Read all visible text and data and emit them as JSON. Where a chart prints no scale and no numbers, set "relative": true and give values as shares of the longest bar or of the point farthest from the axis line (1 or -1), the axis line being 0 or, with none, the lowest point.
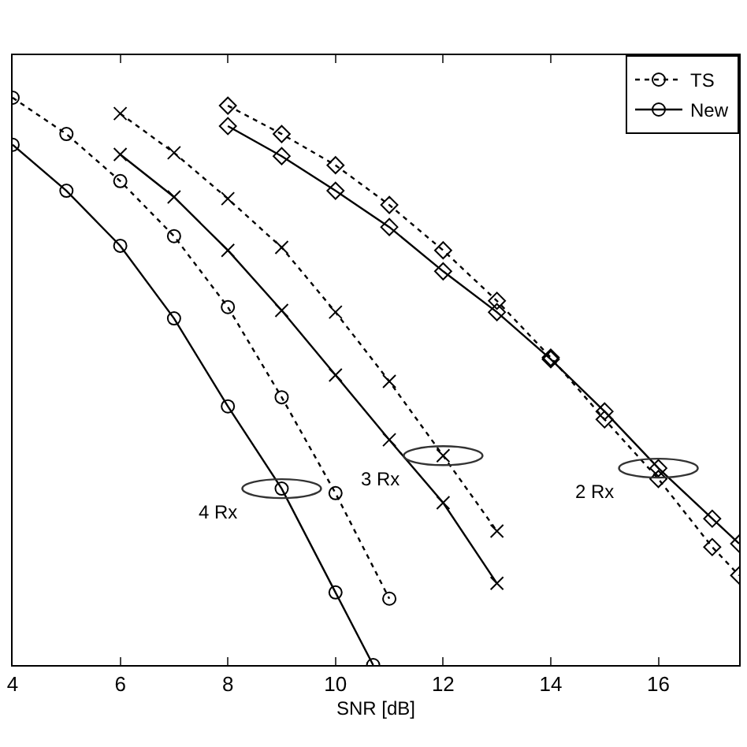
{
  "chart_data": {
    "type": "line",
    "xlabel": "SNR [dB]",
    "relative": true,
    "xlim": [
      4,
      17.5
    ],
    "xticks": [
      4,
      6,
      8,
      10,
      12,
      14,
      16
    ],
    "legend": "top right",
    "series": [
      {
        "name": "TS",
        "color": "#000000",
        "line_style": "dotted",
        "marker": "circle",
        "x": [
          4,
          5,
          6,
          7,
          8,
          9,
          10,
          11
        ],
        "values": [
          1.0,
          0.936,
          0.853,
          0.756,
          0.631,
          0.472,
          0.303,
          0.117
        ]
      },
      {
        "name": "New",
        "color": "#000000",
        "line_style": "solid",
        "marker": "circle",
        "x": [
          4,
          5,
          6,
          7,
          8,
          9,
          10,
          10.7
        ],
        "values": [
          0.917,
          0.836,
          0.739,
          0.611,
          0.456,
          0.311,
          0.128,
          0
        ]
      },
      {
        "color": "#000000",
        "line_style": "dotted",
        "marker": "cross",
        "x": [
          6,
          7,
          8,
          9,
          10,
          11,
          12,
          13
        ],
        "values": [
          0.972,
          0.903,
          0.822,
          0.736,
          0.622,
          0.5,
          0.369,
          0.236
        ]
      },
      {
        "color": "#000000",
        "line_style": "solid",
        "marker": "cross",
        "x": [
          6,
          7,
          8,
          9,
          10,
          11,
          12,
          13
        ],
        "values": [
          0.9,
          0.825,
          0.731,
          0.625,
          0.511,
          0.397,
          0.286,
          0.144
        ]
      },
      {
        "color": "#000000",
        "line_style": "dotted",
        "marker": "diamond",
        "x": [
          8,
          9,
          10,
          11,
          12,
          13,
          14,
          15,
          16,
          17,
          17.5
        ],
        "values": [
          0.986,
          0.936,
          0.881,
          0.811,
          0.731,
          0.642,
          0.542,
          0.433,
          0.328,
          0.208,
          0.158
        ]
      },
      {
        "color": "#000000",
        "line_style": "solid",
        "marker": "diamond",
        "x": [
          8,
          9,
          10,
          11,
          12,
          13,
          14,
          15,
          16,
          17,
          17.5
        ],
        "values": [
          0.95,
          0.897,
          0.836,
          0.772,
          0.694,
          0.622,
          0.539,
          0.447,
          0.347,
          0.258,
          0.214
        ]
      }
    ],
    "annotations": [
      {
        "text": "4 Rx",
        "x": 9,
        "y": 0.311
      },
      {
        "text": "3 Rx",
        "x": 12,
        "y": 0.369
      },
      {
        "text": "2 Rx",
        "x": 16,
        "y": 0.347
      }
    ]
  }
}
